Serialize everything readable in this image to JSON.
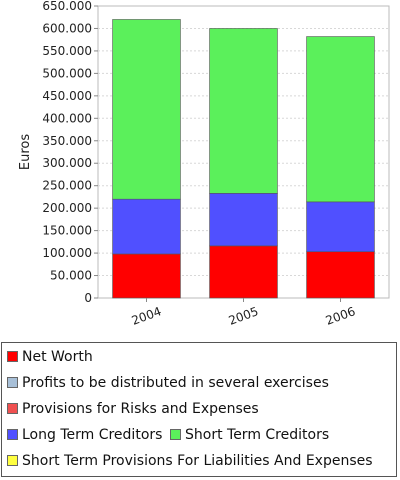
{
  "chart_data": {
    "type": "bar",
    "stacked": true,
    "categories": [
      "2004",
      "2005",
      "2006"
    ],
    "series": [
      {
        "name": "Net Worth",
        "color": "#ff0000",
        "values": [
          98000,
          116000,
          103000
        ]
      },
      {
        "name": "Profits to be distributed in several exercises",
        "color": "#a8c0d8",
        "values": [
          0,
          0,
          0
        ]
      },
      {
        "name": "Provisions for Risks and Expenses",
        "color": "#f05050",
        "values": [
          0,
          0,
          0
        ]
      },
      {
        "name": "Long Term Creditors",
        "color": "#5050ff",
        "values": [
          122000,
          117000,
          111000
        ]
      },
      {
        "name": "Short Term Creditors",
        "color": "#5bf05b",
        "values": [
          400000,
          367000,
          368000
        ]
      },
      {
        "name": "Short Term Provisions For Liabilities And Expenses",
        "color": "#ffff40",
        "values": [
          0,
          0,
          0
        ]
      }
    ],
    "ylabel": "Euros",
    "xlabel": "",
    "title": "",
    "ylim": [
      0,
      650000
    ],
    "yticks": [
      "0",
      "50.000",
      "100.000",
      "150.000",
      "200.000",
      "250.000",
      "300.000",
      "350.000",
      "400.000",
      "450.000",
      "500.000",
      "550.000",
      "600.000",
      "650.000"
    ],
    "grid": true,
    "legend_position": "bottom"
  }
}
